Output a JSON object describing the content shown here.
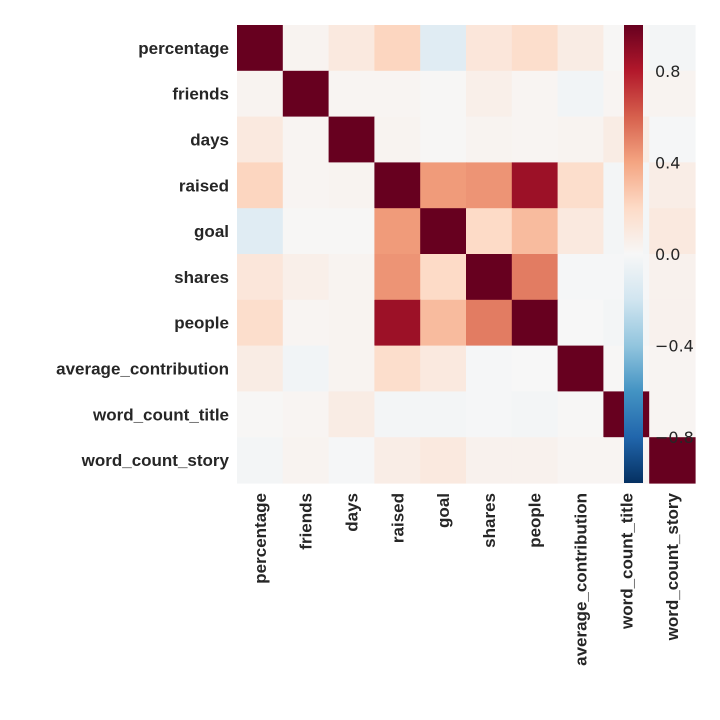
{
  "chart_data": {
    "type": "heatmap",
    "title": "",
    "rows": [
      "percentage",
      "friends",
      "days",
      "raised",
      "goal",
      "shares",
      "people",
      "average_contribution",
      "word_count_title",
      "word_count_story"
    ],
    "columns": [
      "percentage",
      "friends",
      "days",
      "raised",
      "goal",
      "shares",
      "people",
      "average_contribution",
      "word_count_title",
      "word_count_story"
    ],
    "values": [
      [
        1.0,
        0.03,
        0.1,
        0.22,
        -0.12,
        0.12,
        0.18,
        0.08,
        0.01,
        -0.02
      ],
      [
        0.03,
        1.0,
        0.02,
        0.02,
        0.01,
        0.06,
        0.02,
        -0.03,
        0.02,
        0.03
      ],
      [
        0.1,
        0.02,
        1.0,
        0.03,
        0.01,
        0.03,
        0.02,
        0.03,
        0.08,
        -0.01
      ],
      [
        0.22,
        0.02,
        0.03,
        1.0,
        0.43,
        0.45,
        0.86,
        0.18,
        -0.02,
        0.07
      ],
      [
        -0.12,
        0.01,
        0.01,
        0.43,
        1.0,
        0.2,
        0.32,
        0.1,
        -0.02,
        0.1
      ],
      [
        0.12,
        0.06,
        0.03,
        0.45,
        0.2,
        1.0,
        0.52,
        -0.01,
        -0.01,
        0.04
      ],
      [
        0.18,
        0.02,
        0.03,
        0.86,
        0.32,
        0.52,
        1.0,
        0.0,
        -0.02,
        0.04
      ],
      [
        0.08,
        -0.03,
        0.03,
        0.18,
        0.1,
        -0.01,
        0.0,
        1.0,
        0.01,
        0.02
      ],
      [
        0.01,
        0.02,
        0.08,
        -0.02,
        -0.02,
        -0.01,
        -0.02,
        0.01,
        1.0,
        0.02
      ],
      [
        -0.02,
        0.03,
        -0.01,
        0.07,
        0.1,
        0.04,
        0.04,
        0.02,
        0.02,
        1.0
      ]
    ],
    "colorbar": {
      "range": [
        -1.0,
        1.0
      ],
      "ticks": [
        0.8,
        0.4,
        0.0,
        -0.4,
        -0.8
      ],
      "tick_labels": [
        "0.8",
        "0.4",
        "0.0",
        "−0.4",
        "−0.8"
      ],
      "colormap": "RdBu_r"
    }
  }
}
